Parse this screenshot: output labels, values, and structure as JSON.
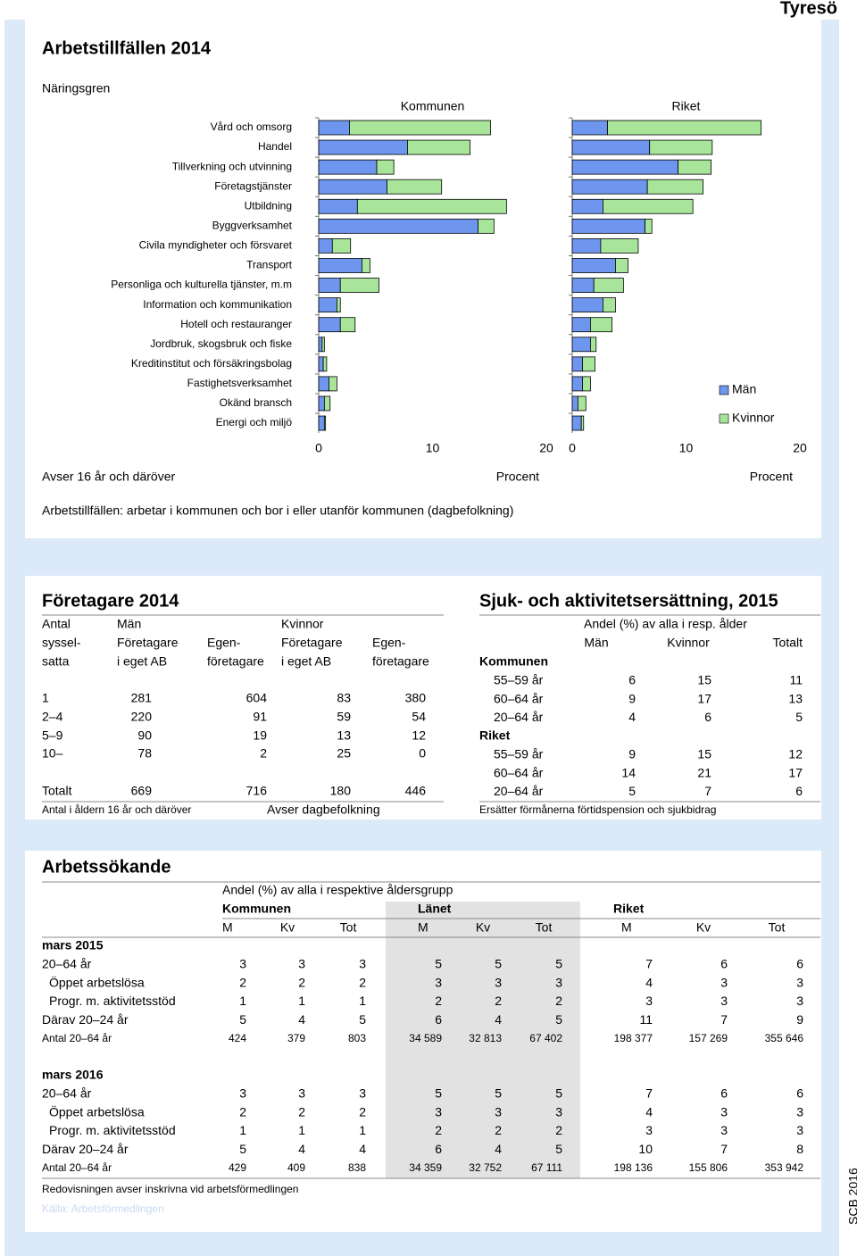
{
  "header": {
    "title": "Tyresö",
    "footer": "SCB 2016"
  },
  "arbetstillfallen": {
    "title": "Arbetstillfällen 2014",
    "subtitle": "Näringsgren",
    "note_left": "Avser 16 år och däröver",
    "note": "Arbetstillfällen: arbetar i kommunen och bor i eller utanför kommunen (dagbefolkning)"
  },
  "chart_data": {
    "type": "bar",
    "orientation": "horizontal",
    "stacked": true,
    "categories": [
      "Vård och omsorg",
      "Handel",
      "Tillverkning och utvinning",
      "Företagstjänster",
      "Utbildning",
      "Byggverksamhet",
      "Civila myndigheter och försvaret",
      "Transport",
      "Personliga och kulturella tjänster, m.m",
      "Information och kommunikation",
      "Hotell och restauranger",
      "Jordbruk, skogsbruk och fiske",
      "Kreditinstitut och försäkringsbolag",
      "Fastighetsverksamhet",
      "Okänd bransch",
      "Energi och miljö"
    ],
    "panels": [
      {
        "title": "Kommunen",
        "xlabel": "Procent"
      },
      {
        "title": "Riket",
        "xlabel": "Procent"
      }
    ],
    "series": [
      {
        "name": "Män",
        "color": "#6f96ef",
        "values": [
          [
            2.7,
            7.8,
            5.1,
            6.0,
            3.4,
            14.0,
            1.2,
            3.8,
            1.9,
            1.6,
            1.9,
            0.3,
            0.4,
            0.9,
            0.5,
            0.5
          ],
          [
            3.1,
            6.8,
            9.3,
            6.6,
            2.7,
            6.4,
            2.5,
            3.8,
            1.9,
            2.7,
            1.6,
            1.6,
            0.9,
            0.9,
            0.5,
            0.8
          ]
        ]
      },
      {
        "name": "Kvinnor",
        "color": "#a8e49a",
        "values": [
          [
            12.4,
            5.5,
            1.5,
            4.8,
            13.1,
            1.4,
            1.6,
            0.7,
            3.4,
            0.3,
            1.3,
            0.2,
            0.3,
            0.7,
            0.5,
            0.1
          ],
          [
            13.5,
            5.5,
            2.9,
            4.9,
            7.9,
            0.6,
            3.3,
            1.1,
            2.6,
            1.1,
            1.9,
            0.5,
            1.1,
            0.7,
            0.7,
            0.2
          ]
        ]
      }
    ],
    "xlim": [
      0,
      20
    ],
    "xticks": [
      0,
      10,
      20
    ],
    "legend": "right"
  },
  "foretagare": {
    "title": "Företagare 2014",
    "header": [
      [
        "Antal",
        "Män",
        "Kvinnor"
      ],
      [
        "syssel-",
        "Företagare",
        "Egen-",
        "Företagare",
        "Egen-"
      ],
      [
        "satta",
        "i eget AB",
        "företagare",
        "i eget AB",
        "företagare"
      ]
    ],
    "rows": [
      [
        "1",
        281,
        604,
        83,
        380
      ],
      [
        "2–4",
        220,
        91,
        59,
        54
      ],
      [
        "5–9",
        90,
        19,
        13,
        12
      ],
      [
        "10–",
        78,
        2,
        25,
        0
      ],
      [
        "Totalt",
        669,
        716,
        180,
        446
      ]
    ],
    "notes": [
      "Antal i åldern 16 år och däröver",
      "Avser dagbefolkning"
    ]
  },
  "sjuk": {
    "title": "Sjuk- och aktivitetsersättning, 2015",
    "header": "Andel (%) av alla i resp. ålder",
    "columns": [
      "Män",
      "Kvinnor",
      "Totalt"
    ],
    "groups": [
      {
        "name": "Kommunen",
        "rows": [
          [
            "55–59 år",
            6,
            15,
            11
          ],
          [
            "60–64 år",
            9,
            17,
            13
          ],
          [
            "20–64 år",
            4,
            6,
            5
          ]
        ]
      },
      {
        "name": "Riket",
        "rows": [
          [
            "55–59 år",
            9,
            15,
            12
          ],
          [
            "60–64 år",
            14,
            21,
            17
          ],
          [
            "20–64 år",
            5,
            7,
            6
          ]
        ]
      }
    ],
    "note": "Ersätter förmånerna förtidspension och sjukbidrag"
  },
  "arbetssokande": {
    "title": "Arbetssökande",
    "header": "Andel (%) av alla i respektive åldersgrupp",
    "groups": [
      "Kommunen",
      "Länet",
      "Riket"
    ],
    "columns": [
      "M",
      "Kv",
      "Tot"
    ],
    "periods": [
      {
        "name": "mars 2015",
        "rows": [
          {
            "label": "20–64 år",
            "values": [
              3,
              3,
              3,
              5,
              5,
              5,
              7,
              6,
              6
            ]
          },
          {
            "label": "Öppet arbetslösa",
            "values": [
              2,
              2,
              2,
              3,
              3,
              3,
              4,
              3,
              3
            ]
          },
          {
            "label": "Progr. m. aktivitetsstöd",
            "values": [
              1,
              1,
              1,
              2,
              2,
              2,
              3,
              3,
              3
            ]
          },
          {
            "label": "Därav 20–24 år",
            "values": [
              5,
              4,
              5,
              6,
              4,
              5,
              11,
              7,
              9
            ]
          },
          {
            "label": "Antal 20–64 år",
            "values": [
              424,
              379,
              803,
              "34 589",
              "32 813",
              "67 402",
              "198 377",
              "157 269",
              "355 646"
            ]
          }
        ]
      },
      {
        "name": "mars 2016",
        "rows": [
          {
            "label": "20–64 år",
            "values": [
              3,
              3,
              3,
              5,
              5,
              5,
              7,
              6,
              6
            ]
          },
          {
            "label": "Öppet arbetslösa",
            "values": [
              2,
              2,
              2,
              3,
              3,
              3,
              4,
              3,
              3
            ]
          },
          {
            "label": "Progr. m. aktivitetsstöd",
            "values": [
              1,
              1,
              1,
              2,
              2,
              2,
              3,
              3,
              3
            ]
          },
          {
            "label": "Därav 20–24 år",
            "values": [
              5,
              4,
              4,
              6,
              4,
              5,
              10,
              7,
              8
            ]
          },
          {
            "label": "Antal 20–64 år",
            "values": [
              429,
              409,
              838,
              "34 359",
              "32 752",
              "67 111",
              "198 136",
              "155 806",
              "353 942"
            ]
          }
        ]
      }
    ],
    "notes": [
      "Redovisningen avser inskrivna vid arbetsförmedlingen",
      "Källa: Arbetsförmedlingen"
    ]
  }
}
